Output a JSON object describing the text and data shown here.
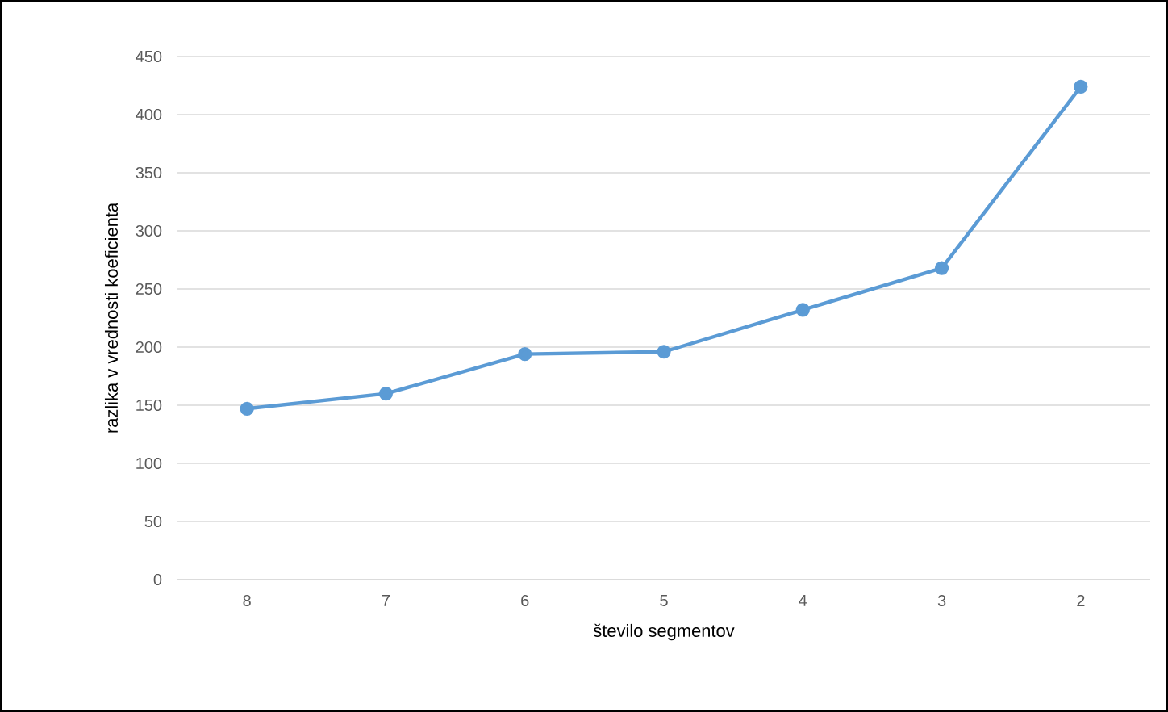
{
  "chart_data": {
    "type": "line",
    "xlabel": "število segmentov",
    "ylabel": "razlika v vrednosti koeficienta",
    "categories": [
      "8",
      "7",
      "6",
      "5",
      "4",
      "3",
      "2"
    ],
    "series": [
      {
        "color": "#5b9bd5",
        "values": [
          147,
          160,
          194,
          196,
          232,
          268,
          424
        ]
      }
    ],
    "ylim": [
      0,
      450
    ],
    "yticks": [
      0,
      50,
      100,
      150,
      200,
      250,
      300,
      350,
      400,
      450
    ],
    "grid": "y",
    "marker": "circle",
    "line_style": "solid"
  }
}
